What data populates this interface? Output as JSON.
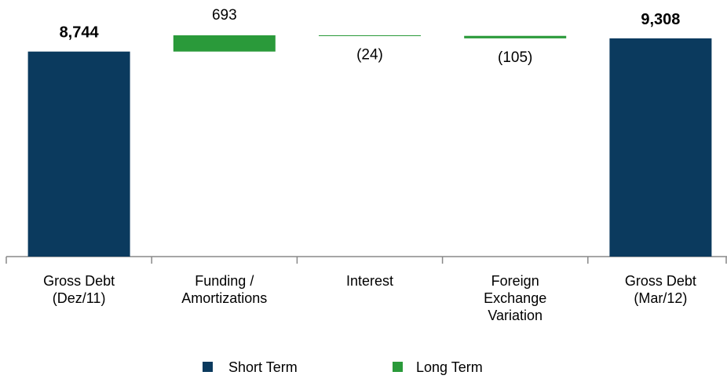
{
  "chart_data": {
    "type": "waterfall",
    "categories": [
      [
        "Gross Debt",
        "(Dez/11)"
      ],
      [
        "Funding /",
        "Amortizations"
      ],
      [
        "Interest"
      ],
      [
        "Foreign",
        "Exchange",
        "Variation"
      ],
      [
        "Gross Debt",
        "(Mar/12)"
      ]
    ],
    "series": [
      {
        "name": "Short Term",
        "color": "#0b3a5e",
        "values": [
          8744,
          null,
          null,
          null,
          9308
        ],
        "value_labels": [
          "8,744",
          null,
          null,
          null,
          "9,308"
        ]
      },
      {
        "name": "Long Term",
        "color": "#2a9a3a",
        "values": [
          null,
          693,
          -24,
          -105,
          null
        ],
        "value_labels": [
          null,
          "693",
          "(24)",
          "(105)",
          null
        ]
      }
    ]
  }
}
